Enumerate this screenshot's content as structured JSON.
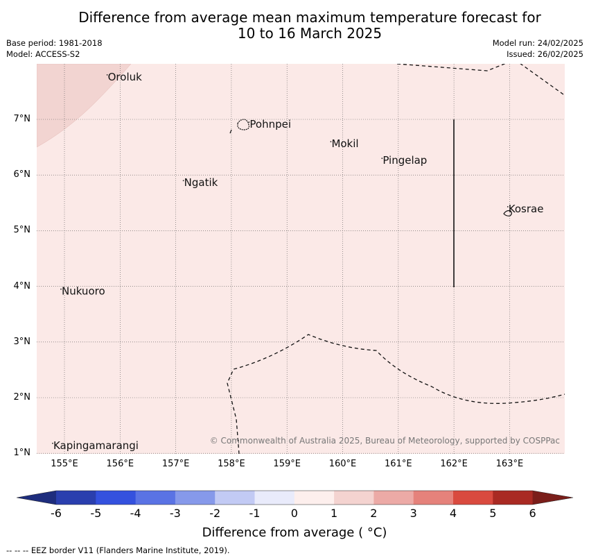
{
  "title": {
    "line1": "Difference from average mean maximum temperature forecast for",
    "line2": "10 to 16 March 2025"
  },
  "meta": {
    "base_period": "Base period: 1981-2018",
    "model": "Model: ACCESS-S2",
    "model_run": "Model run: 24/02/2025",
    "issued": "Issued: 26/02/2025"
  },
  "map": {
    "background_color": "#fbe9e7",
    "warmer_region_color": "#f2d4d1",
    "lat_labels": [
      "7°N",
      "6°N",
      "5°N",
      "4°N",
      "3°N",
      "2°N",
      "1°N"
    ],
    "lon_labels": [
      "155°E",
      "156°E",
      "157°E",
      "158°E",
      "159°E",
      "160°E",
      "161°E",
      "162°E",
      "163°E"
    ],
    "places": [
      {
        "name": "Oroluk",
        "lon": 155.78,
        "lat": 7.7
      },
      {
        "name": "Pohnpei",
        "lon": 158.33,
        "lat": 6.85
      },
      {
        "name": "Mokil",
        "lon": 159.8,
        "lat": 6.5
      },
      {
        "name": "Pingelap",
        "lon": 160.72,
        "lat": 6.2
      },
      {
        "name": "Ngatik",
        "lon": 157.15,
        "lat": 5.8
      },
      {
        "name": "Kosrae",
        "lon": 162.98,
        "lat": 5.33
      },
      {
        "name": "Nukuoro",
        "lon": 154.95,
        "lat": 3.85
      },
      {
        "name": "Kapingamarangi",
        "lon": 154.8,
        "lat": 1.08
      }
    ],
    "copyright": "© Commonwealth of Australia 2025, Bureau of Meteorology, supported by COSPPac"
  },
  "colorbar": {
    "ticks": [
      "-6",
      "-5",
      "-4",
      "-3",
      "-2",
      "-1",
      "0",
      "1",
      "2",
      "3",
      "4",
      "5",
      "6"
    ],
    "colors": [
      "#2a3fae",
      "#3451de",
      "#5a73e4",
      "#8699ea",
      "#c2caf4",
      "#e9ebfb",
      "#fdefed",
      "#f4d3d0",
      "#ecaaa6",
      "#e5827b",
      "#d94a3f",
      "#a92a23"
    ],
    "low_extend_color": "#1e2d7d",
    "high_extend_color": "#7a1e1a",
    "label": "Difference from average ( °C)"
  },
  "footnote": "--  --  -- EEZ border V11 (Flanders Marine Institute, 2019)."
}
